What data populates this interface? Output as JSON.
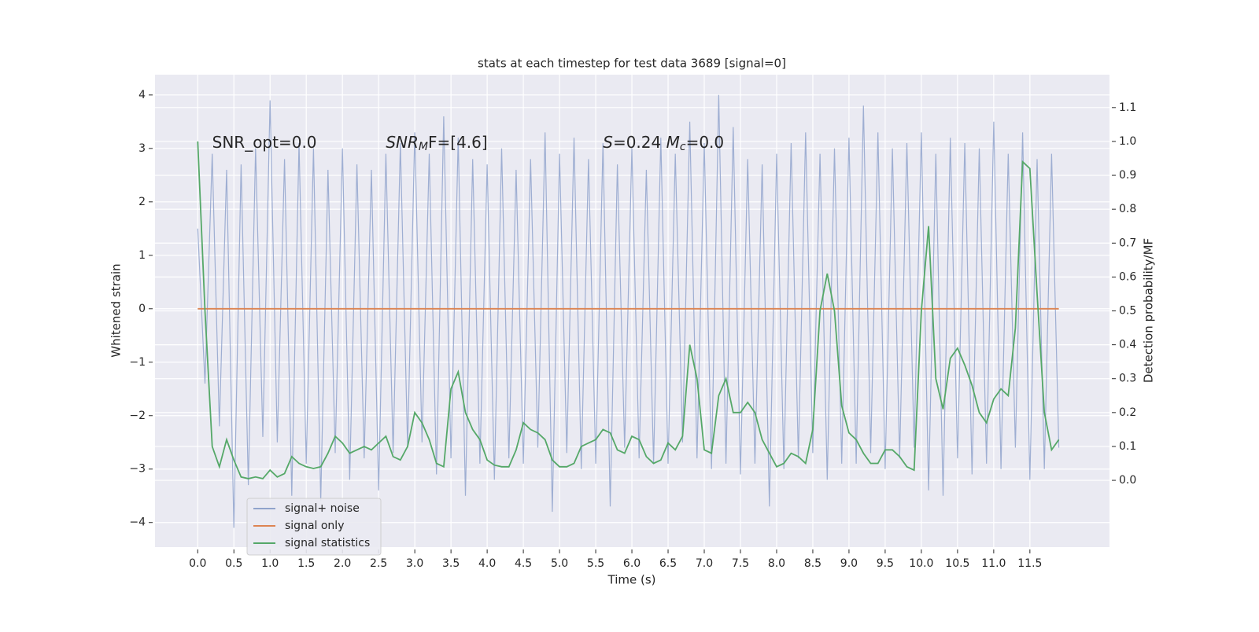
{
  "chart_data": {
    "type": "line",
    "title": "stats at each timestep for test data 3689 [signal=0]",
    "xlabel": "Time (s)",
    "ylabel": "Whitened strain",
    "y2label": "Detection probability/MF",
    "annotations": [
      {
        "parts": [
          "SNR_opt=0.0"
        ],
        "x": 0.2,
        "y": 3.1
      },
      {
        "parts": [
          "SNR",
          "M",
          "F=[4.6]"
        ],
        "x": 2.6,
        "y": 3.1
      },
      {
        "parts": [
          "S",
          "=0.24   ",
          "M",
          "c",
          "=0.0"
        ],
        "x": 5.6,
        "y": 3.1
      }
    ],
    "x": [
      0,
      0.1,
      0.2,
      0.3,
      0.4,
      0.5,
      0.6,
      0.7,
      0.8,
      0.9,
      1,
      1.1,
      1.2,
      1.3,
      1.4,
      1.5,
      1.6,
      1.7,
      1.8,
      1.9,
      2,
      2.1,
      2.2,
      2.3,
      2.4,
      2.5,
      2.6,
      2.7,
      2.8,
      2.9,
      3,
      3.1,
      3.2,
      3.3,
      3.4,
      3.5,
      3.6,
      3.7,
      3.8,
      3.9,
      4,
      4.1,
      4.2,
      4.3,
      4.4,
      4.5,
      4.6,
      4.7,
      4.8,
      4.9,
      5,
      5.1,
      5.2,
      5.3,
      5.4,
      5.5,
      5.6,
      5.7,
      5.8,
      5.9,
      6,
      6.1,
      6.2,
      6.3,
      6.4,
      6.5,
      6.6,
      6.7,
      6.8,
      6.9,
      7,
      7.1,
      7.2,
      7.3,
      7.4,
      7.5,
      7.6,
      7.7,
      7.8,
      7.9,
      8,
      8.1,
      8.2,
      8.3,
      8.4,
      8.5,
      8.6,
      8.7,
      8.8,
      8.9,
      9,
      9.1,
      9.2,
      9.3,
      9.4,
      9.5,
      9.6,
      9.7,
      9.8,
      9.9,
      10,
      10.1,
      10.2,
      10.3,
      10.4,
      10.5,
      10.6,
      10.7,
      10.8,
      10.9,
      11,
      11.1,
      11.2,
      11.3,
      11.4,
      11.5,
      11.6,
      11.7,
      11.8,
      11.9
    ],
    "series": [
      {
        "name": "signal+ noise",
        "color": "#91a3cc",
        "values": [
          1.5,
          -1.4,
          2.9,
          -2.2,
          2.6,
          -4.1,
          2.7,
          -3.3,
          3.0,
          -2.4,
          3.9,
          -2.5,
          2.8,
          -3.5,
          3.1,
          -2.9,
          3.0,
          -3.6,
          2.6,
          -2.7,
          3.0,
          -3.2,
          2.7,
          -2.8,
          2.6,
          -3.4,
          2.9,
          -2.7,
          3.1,
          -2.6,
          3.3,
          -2.5,
          2.9,
          -3.1,
          3.6,
          -2.8,
          3.2,
          -3.5,
          2.8,
          -2.9,
          2.7,
          -3.2,
          3.0,
          -2.8,
          2.6,
          -2.9,
          2.8,
          -2.6,
          3.3,
          -3.8,
          2.9,
          -2.7,
          3.2,
          -3.0,
          2.8,
          -2.9,
          3.1,
          -3.7,
          2.7,
          -2.6,
          3.0,
          -2.8,
          2.6,
          -2.9,
          3.2,
          -2.9,
          2.9,
          -2.5,
          3.5,
          -2.8,
          3.1,
          -3.0,
          4.0,
          -2.9,
          3.4,
          -3.1,
          2.8,
          -2.9,
          2.7,
          -3.7,
          2.9,
          -3.0,
          3.1,
          -2.8,
          3.3,
          -2.7,
          2.9,
          -3.2,
          3.0,
          -2.9,
          3.2,
          -2.9,
          3.8,
          -2.7,
          3.3,
          -3.0,
          3.0,
          -2.8,
          3.1,
          -2.6,
          3.3,
          -3.4,
          2.9,
          -3.5,
          3.2,
          -2.8,
          3.1,
          -3.1,
          3.0,
          -2.9,
          3.5,
          -3.0,
          2.9,
          -2.6,
          3.3,
          -3.2,
          2.8,
          -3.0,
          2.9,
          -2.6
        ]
      },
      {
        "name": "signal only",
        "color": "#dd8452",
        "values": [
          0,
          0,
          0,
          0,
          0,
          0,
          0,
          0,
          0,
          0,
          0,
          0,
          0,
          0,
          0,
          0,
          0,
          0,
          0,
          0,
          0,
          0,
          0,
          0,
          0,
          0,
          0,
          0,
          0,
          0,
          0,
          0,
          0,
          0,
          0,
          0,
          0,
          0,
          0,
          0,
          0,
          0,
          0,
          0,
          0,
          0,
          0,
          0,
          0,
          0,
          0,
          0,
          0,
          0,
          0,
          0,
          0,
          0,
          0,
          0,
          0,
          0,
          0,
          0,
          0,
          0,
          0,
          0,
          0,
          0,
          0,
          0,
          0,
          0,
          0,
          0,
          0,
          0,
          0,
          0,
          0,
          0,
          0,
          0,
          0,
          0,
          0,
          0,
          0,
          0,
          0,
          0,
          0,
          0,
          0,
          0,
          0,
          0,
          0,
          0,
          0,
          0,
          0,
          0,
          0,
          0,
          0,
          0,
          0,
          0,
          0,
          0,
          0,
          0,
          0,
          0,
          0,
          0,
          0,
          0
        ]
      },
      {
        "name": "signal statistics",
        "color": "#55a868",
        "axis": "y2",
        "values": [
          1.0,
          0.5,
          0.1,
          0.04,
          0.12,
          0.06,
          0.01,
          0.005,
          0.01,
          0.005,
          0.03,
          0.01,
          0.02,
          0.07,
          0.05,
          0.04,
          0.035,
          0.04,
          0.08,
          0.13,
          0.11,
          0.08,
          0.09,
          0.1,
          0.09,
          0.11,
          0.13,
          0.07,
          0.06,
          0.1,
          0.2,
          0.17,
          0.12,
          0.05,
          0.04,
          0.27,
          0.32,
          0.2,
          0.15,
          0.12,
          0.06,
          0.045,
          0.04,
          0.04,
          0.09,
          0.17,
          0.15,
          0.14,
          0.12,
          0.06,
          0.04,
          0.04,
          0.05,
          0.1,
          0.11,
          0.12,
          0.15,
          0.14,
          0.09,
          0.08,
          0.13,
          0.12,
          0.07,
          0.05,
          0.06,
          0.11,
          0.09,
          0.13,
          0.4,
          0.3,
          0.09,
          0.08,
          0.25,
          0.3,
          0.2,
          0.2,
          0.23,
          0.2,
          0.12,
          0.08,
          0.04,
          0.05,
          0.08,
          0.07,
          0.05,
          0.15,
          0.5,
          0.61,
          0.5,
          0.22,
          0.14,
          0.12,
          0.08,
          0.05,
          0.05,
          0.09,
          0.09,
          0.07,
          0.04,
          0.03,
          0.5,
          0.75,
          0.3,
          0.21,
          0.36,
          0.39,
          0.34,
          0.28,
          0.2,
          0.17,
          0.24,
          0.27,
          0.25,
          0.45,
          0.94,
          0.92,
          0.55,
          0.2,
          0.09,
          0.12
        ]
      }
    ],
    "xlim": [
      -0.59,
      12.6
    ],
    "ylim": [
      -4.46,
      4.38
    ],
    "y2lim": [
      -0.197,
      1.197
    ],
    "xticks": [
      {
        "value": 0,
        "label": "0.0"
      },
      0.5,
      {
        "value": 1,
        "label": "1.0"
      },
      1.5,
      {
        "value": 2,
        "label": "2.0"
      },
      2.5,
      {
        "value": 3,
        "label": "3.0"
      },
      3.5,
      {
        "value": 4,
        "label": "4.0"
      },
      4.5,
      {
        "value": 5,
        "label": "5.0"
      },
      5.5,
      {
        "value": 6,
        "label": "6.0"
      },
      6.5,
      {
        "value": 7,
        "label": "7.0"
      },
      7.5,
      {
        "value": 8,
        "label": "8.0"
      },
      8.5,
      {
        "value": 9,
        "label": "9.0"
      },
      9.5,
      {
        "value": 10,
        "label": "10.0"
      },
      10.5,
      {
        "value": 11,
        "label": "11.0"
      },
      11.5
    ],
    "yticks": [
      {
        "value": -4,
        "label": "−4"
      },
      {
        "value": -3,
        "label": "−3"
      },
      {
        "value": -2,
        "label": "−2"
      },
      {
        "value": -1,
        "label": "−1"
      },
      0,
      1,
      2,
      3,
      4
    ],
    "y2ticks": [
      {
        "value": 0,
        "label": "0.0"
      },
      0.1,
      0.2,
      0.3,
      0.4,
      0.5,
      0.6,
      0.7,
      0.8,
      0.9,
      {
        "value": 1,
        "label": "1.0"
      },
      1.1
    ],
    "grid": true,
    "legend": "lower left"
  }
}
